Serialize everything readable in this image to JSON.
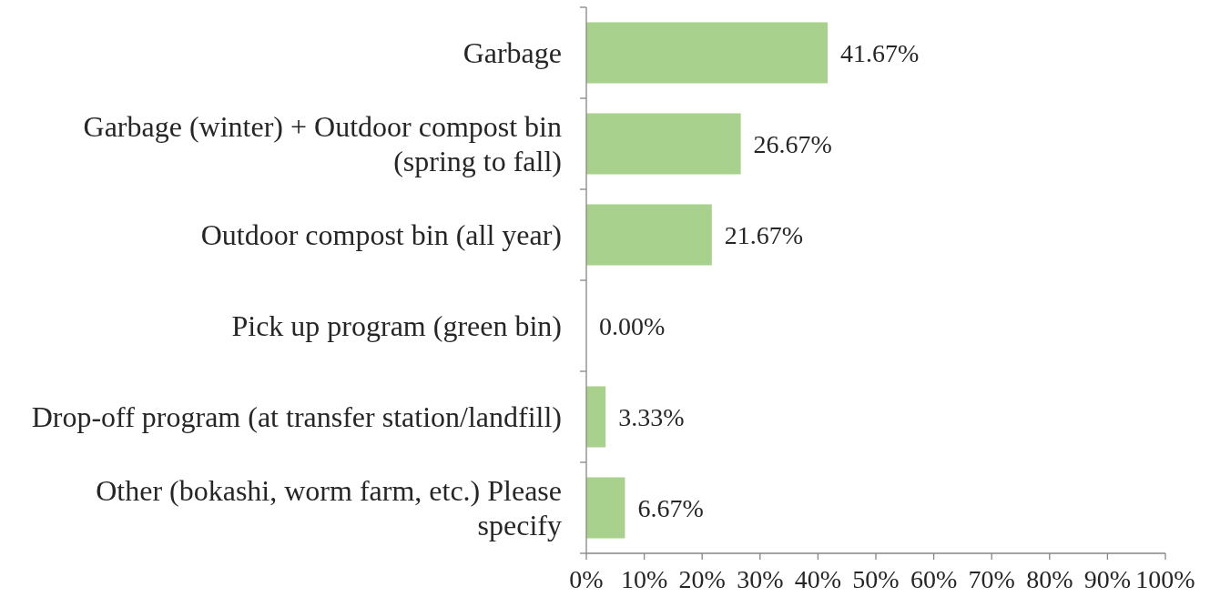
{
  "chart_data": {
    "type": "bar",
    "orientation": "horizontal",
    "categories": [
      "Garbage",
      "Garbage (winter) + Outdoor compost bin (spring to fall)",
      "Outdoor compost bin (all year)",
      "Pick up program (green bin)",
      "Drop-off program (at transfer station/landfill)",
      "Other (bokashi, worm farm, etc.) Please specify"
    ],
    "values": [
      41.67,
      26.67,
      21.67,
      0,
      3.33,
      6.67
    ],
    "value_labels": [
      "41.67%",
      "26.67%",
      "21.67%",
      "0.00%",
      "3.33%",
      "6.67%"
    ],
    "color": "#a9d18e",
    "xlim": [
      0,
      100
    ],
    "xticks": [
      {
        "value": 0,
        "label": "0%"
      },
      {
        "value": 10,
        "label": "10%"
      },
      {
        "value": 20,
        "label": "20%"
      },
      {
        "value": 30,
        "label": "30%"
      },
      {
        "value": 40,
        "label": "40%"
      },
      {
        "value": 50,
        "label": "50%"
      },
      {
        "value": 60,
        "label": "60%"
      },
      {
        "value": 70,
        "label": "70%"
      },
      {
        "value": 80,
        "label": "80%"
      },
      {
        "value": 90,
        "label": "90%"
      },
      {
        "value": 100,
        "label": "100%"
      }
    ],
    "grid": false
  }
}
